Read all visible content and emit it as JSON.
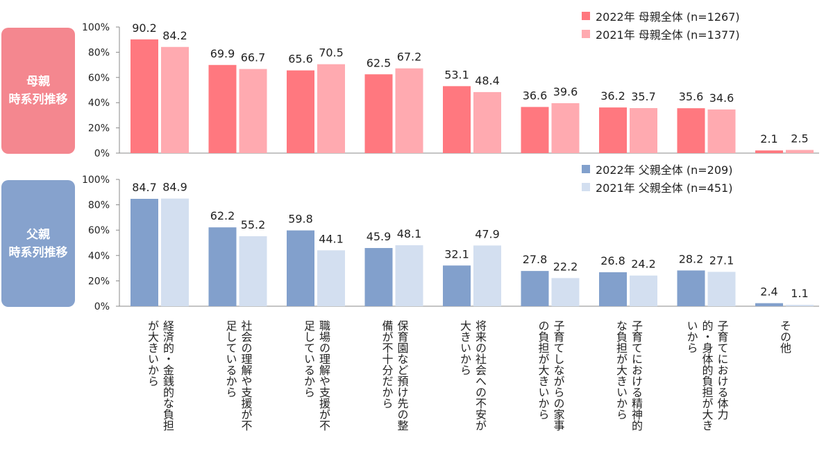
{
  "side_labels": {
    "mother": {
      "line1": "母親",
      "line2": "時系列推移",
      "color": "#f4878f"
    },
    "father": {
      "line1": "父親",
      "line2": "時系列推移",
      "color": "#86a2cd"
    }
  },
  "chart_data": [
    {
      "type": "bar",
      "panel": "mother",
      "title": "",
      "ylim": [
        0,
        100
      ],
      "yticks": [
        "0%",
        "20%",
        "40%",
        "60%",
        "80%",
        "100%"
      ],
      "categories": [
        "経済的・金銭的な負担が大きいから",
        "社会の理解や支援が不足しているから",
        "職場の理解や支援が不足しているから",
        "保育園など預け先の整備が不十分だから",
        "将来の社会への不安が大きいから",
        "子育てしながらの家事の負担が大きいから",
        "子育てにおける精神的な負担が大きいから",
        "子育てにおける体力的・身体的負担が大きいから",
        "その他"
      ],
      "series": [
        {
          "name": "2022年  母親全体 (n=1267)",
          "color": "#ff787f",
          "values": [
            90.2,
            69.9,
            65.6,
            62.5,
            53.1,
            36.6,
            36.2,
            35.6,
            2.1
          ]
        },
        {
          "name": "2021年  母親全体 (n=1377)",
          "color": "#ffaab0",
          "values": [
            84.2,
            66.7,
            70.5,
            67.2,
            48.4,
            39.6,
            35.7,
            34.6,
            2.5
          ]
        }
      ],
      "legend_position": "top-right"
    },
    {
      "type": "bar",
      "panel": "father",
      "title": "",
      "ylim": [
        0,
        100
      ],
      "yticks": [
        "0%",
        "20%",
        "40%",
        "60%",
        "80%",
        "100%"
      ],
      "categories": [
        "経済的・金銭的な負担が大きいから",
        "社会の理解や支援が不足しているから",
        "職場の理解や支援が不足しているから",
        "保育園など預け先の整備が不十分だから",
        "将来の社会への不安が大きいから",
        "子育てしながらの家事の負担が大きいから",
        "子育てにおける精神的な負担が大きいから",
        "子育てにおける体力的・身体的負担が大きいから",
        "その他"
      ],
      "series": [
        {
          "name": "2022年  父親全体 (n=209)",
          "color": "#82a0cc",
          "values": [
            84.7,
            62.2,
            59.8,
            45.9,
            32.1,
            27.8,
            26.8,
            28.2,
            2.4
          ]
        },
        {
          "name": "2021年  父親全体 (n=451)",
          "color": "#d3dff0",
          "values": [
            84.9,
            55.2,
            44.1,
            48.1,
            47.9,
            22.2,
            24.2,
            27.1,
            1.1
          ]
        }
      ],
      "legend_position": "top-right"
    }
  ],
  "category_labels": [
    {
      "col1": "経済的・金銭的な負担",
      "col2": "が大きいから"
    },
    {
      "col1": "社会の理解や支援が不",
      "col2": "足しているから"
    },
    {
      "col1": "職場の理解や支援が不",
      "col2": "足しているから"
    },
    {
      "col1": "保育園など預け先の整",
      "col2": "備が不十分だから"
    },
    {
      "col1": "将来の社会への不安が",
      "col2": "大きいから"
    },
    {
      "col1": "子育てしながらの家事",
      "col2": "の負担が大きいから"
    },
    {
      "col1": "子育てにおける精神的",
      "col2": "な負担が大きいから"
    },
    {
      "col1": "子育てにおける体力",
      "col2": "的・身体的負担が大き",
      "col3": "いから"
    },
    {
      "col1": "その他"
    }
  ]
}
